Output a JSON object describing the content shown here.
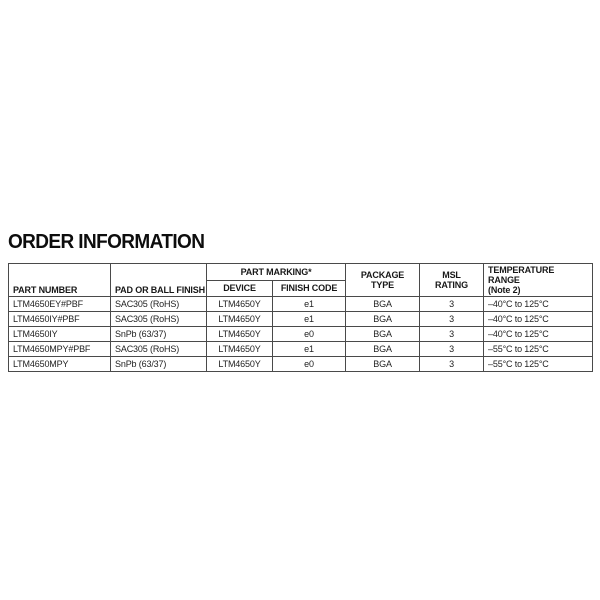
{
  "page": {
    "title": "ORDER INFORMATION"
  },
  "table": {
    "headers": {
      "part_number": "PART NUMBER",
      "pad_or_ball_finish": "PAD OR BALL FINISH",
      "part_marking": "PART MARKING*",
      "device": "DEVICE",
      "finish_code": "FINISH CODE",
      "package_type": "PACKAGE\nTYPE",
      "msl_rating": "MSL\nRATING",
      "temperature_range": "TEMPERATURE RANGE\n(Note 2)"
    },
    "rows": [
      {
        "part_number": "LTM4650EY#PBF",
        "pad_or_ball_finish": "SAC305 (RoHS)",
        "device": "LTM4650Y",
        "finish_code": "e1",
        "package_type": "BGA",
        "msl_rating": "3",
        "temperature_range": "–40°C to 125°C"
      },
      {
        "part_number": "LTM4650IY#PBF",
        "pad_or_ball_finish": "SAC305 (RoHS)",
        "device": "LTM4650Y",
        "finish_code": "e1",
        "package_type": "BGA",
        "msl_rating": "3",
        "temperature_range": "–40°C to 125°C"
      },
      {
        "part_number": "LTM4650IY",
        "pad_or_ball_finish": "SnPb (63/37)",
        "device": "LTM4650Y",
        "finish_code": "e0",
        "package_type": "BGA",
        "msl_rating": "3",
        "temperature_range": "–40°C to 125°C"
      },
      {
        "part_number": "LTM4650MPY#PBF",
        "pad_or_ball_finish": "SAC305 (RoHS)",
        "device": "LTM4650Y",
        "finish_code": "e1",
        "package_type": "BGA",
        "msl_rating": "3",
        "temperature_range": "–55°C to 125°C"
      },
      {
        "part_number": "LTM4650MPY",
        "pad_or_ball_finish": "SnPb (63/37)",
        "device": "LTM4650Y",
        "finish_code": "e0",
        "package_type": "BGA",
        "msl_rating": "3",
        "temperature_range": "–55°C to 125°C"
      }
    ]
  }
}
